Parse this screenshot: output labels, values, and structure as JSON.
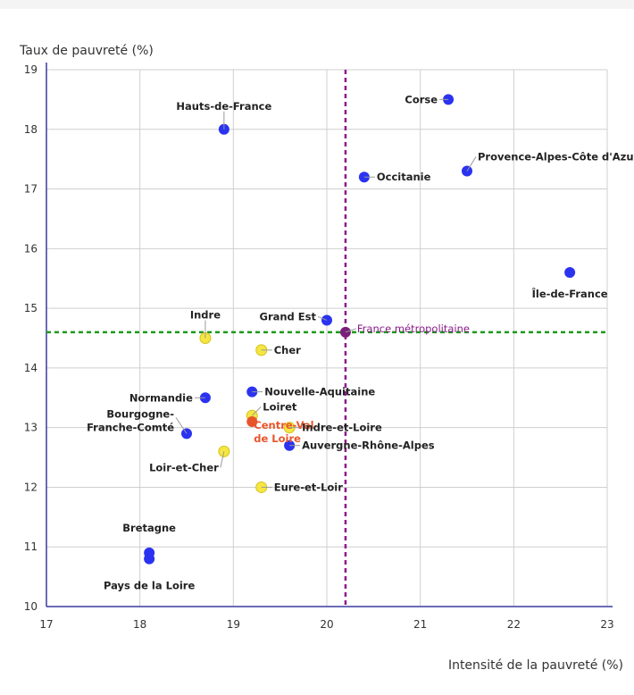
{
  "chart_data": {
    "type": "scatter",
    "xlabel": "Intensité de la pauvreté (%)",
    "ylabel": "Taux de pauvreté (%)",
    "xlim": [
      17,
      23
    ],
    "ylim": [
      10,
      19
    ],
    "xticks": [
      17,
      18,
      19,
      20,
      21,
      22,
      23
    ],
    "yticks": [
      10,
      11,
      12,
      13,
      14,
      15,
      16,
      17,
      18,
      19
    ],
    "grid": true,
    "colors": {
      "region": "#2b33f0",
      "department": "#f5e642",
      "highlight": "#e8542a",
      "reference": "#7a1f7a",
      "hline": "#1a9a1a",
      "vline": "#8b1a8b",
      "axis": "#3a3aa0"
    },
    "reference": {
      "name": "France métropolitaine",
      "x": 20.2,
      "y": 14.6
    },
    "points": [
      {
        "name": "Corse",
        "x": 21.3,
        "y": 18.5,
        "group": "region"
      },
      {
        "name": "Hauts-de-France",
        "x": 18.9,
        "y": 18.0,
        "group": "region"
      },
      {
        "name": "Provence-Alpes-Côte d'Azur",
        "x": 21.5,
        "y": 17.3,
        "group": "region"
      },
      {
        "name": "Occitanie",
        "x": 20.4,
        "y": 17.2,
        "group": "region"
      },
      {
        "name": "Île-de-France",
        "x": 22.6,
        "y": 15.6,
        "group": "region"
      },
      {
        "name": "Grand Est",
        "x": 20.0,
        "y": 14.8,
        "group": "region"
      },
      {
        "name": "Indre",
        "x": 18.7,
        "y": 14.5,
        "group": "department"
      },
      {
        "name": "Cher",
        "x": 19.3,
        "y": 14.3,
        "group": "department"
      },
      {
        "name": "Nouvelle-Aquitaine",
        "x": 19.2,
        "y": 13.6,
        "group": "region"
      },
      {
        "name": "Normandie",
        "x": 18.7,
        "y": 13.5,
        "group": "region"
      },
      {
        "name": "Loiret",
        "x": 19.2,
        "y": 13.2,
        "group": "department"
      },
      {
        "name": "Centre-Val de Loire",
        "x": 19.2,
        "y": 13.1,
        "group": "highlight"
      },
      {
        "name": "Indre-et-Loire",
        "x": 19.6,
        "y": 13.0,
        "group": "department"
      },
      {
        "name": "Bourgogne-Franche-Comté",
        "x": 18.5,
        "y": 12.9,
        "group": "region"
      },
      {
        "name": "Auvergne-Rhône-Alpes",
        "x": 19.6,
        "y": 12.7,
        "group": "region"
      },
      {
        "name": "Loir-et-Cher",
        "x": 18.9,
        "y": 12.6,
        "group": "department"
      },
      {
        "name": "Eure-et-Loir",
        "x": 19.3,
        "y": 12.0,
        "group": "department"
      },
      {
        "name": "Bretagne",
        "x": 18.1,
        "y": 10.9,
        "group": "region"
      },
      {
        "name": "Pays de la Loire",
        "x": 18.1,
        "y": 10.8,
        "group": "region"
      }
    ]
  }
}
